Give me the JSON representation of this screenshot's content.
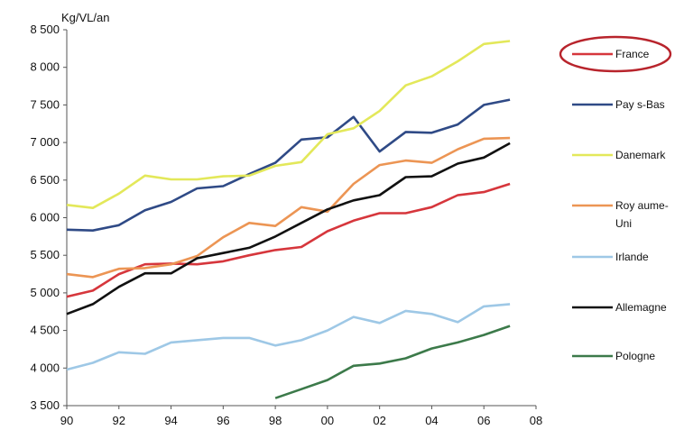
{
  "chart_data": {
    "type": "line",
    "title": "",
    "ylabel": "Kg/VL/an",
    "xlabel": "",
    "xlim": [
      1990,
      2008
    ],
    "ylim": [
      3500,
      8500
    ],
    "x_ticks": [
      {
        "value": 1990,
        "label": "90"
      },
      {
        "value": 1992,
        "label": "92"
      },
      {
        "value": 1994,
        "label": "94"
      },
      {
        "value": 1996,
        "label": "96"
      },
      {
        "value": 1998,
        "label": "98"
      },
      {
        "value": 2000,
        "label": "00"
      },
      {
        "value": 2002,
        "label": "02"
      },
      {
        "value": 2004,
        "label": "04"
      },
      {
        "value": 2006,
        "label": "06"
      },
      {
        "value": 2008,
        "label": "08"
      }
    ],
    "y_ticks": [
      {
        "value": 3500,
        "label": "3 500"
      },
      {
        "value": 4000,
        "label": "4 000"
      },
      {
        "value": 4500,
        "label": "4 500"
      },
      {
        "value": 5000,
        "label": "5 000"
      },
      {
        "value": 5500,
        "label": "5 500"
      },
      {
        "value": 6000,
        "label": "6 000"
      },
      {
        "value": 6500,
        "label": "6 500"
      },
      {
        "value": 7000,
        "label": "7 000"
      },
      {
        "value": 7500,
        "label": "7 500"
      },
      {
        "value": 8000,
        "label": "8 000"
      },
      {
        "value": 8500,
        "label": "8 500"
      }
    ],
    "grid": false,
    "legend_position": "right",
    "highlighted_series": "France",
    "highlight_color": "#b8242c",
    "series": [
      {
        "name": "France",
        "legend_lines": [
          "France"
        ],
        "color": "#d6363c",
        "points": [
          [
            1990,
            4950
          ],
          [
            1991,
            5030
          ],
          [
            1992,
            5250
          ],
          [
            1993,
            5380
          ],
          [
            1994,
            5390
          ],
          [
            1995,
            5380
          ],
          [
            1996,
            5420
          ],
          [
            1997,
            5500
          ],
          [
            1998,
            5570
          ],
          [
            1999,
            5610
          ],
          [
            2000,
            5820
          ],
          [
            2001,
            5960
          ],
          [
            2002,
            6060
          ],
          [
            2003,
            6060
          ],
          [
            2004,
            6140
          ],
          [
            2005,
            6300
          ],
          [
            2006,
            6340
          ],
          [
            2007,
            6450
          ]
        ]
      },
      {
        "name": "Pays-Bas",
        "legend_lines": [
          "Pay s-Bas"
        ],
        "color": "#2f4a86",
        "points": [
          [
            1990,
            5840
          ],
          [
            1991,
            5830
          ],
          [
            1992,
            5900
          ],
          [
            1993,
            6100
          ],
          [
            1994,
            6210
          ],
          [
            1995,
            6390
          ],
          [
            1996,
            6420
          ],
          [
            1997,
            6580
          ],
          [
            1998,
            6730
          ],
          [
            1999,
            7040
          ],
          [
            2000,
            7070
          ],
          [
            2001,
            7340
          ],
          [
            2002,
            6880
          ],
          [
            2003,
            7140
          ],
          [
            2004,
            7130
          ],
          [
            2005,
            7240
          ],
          [
            2006,
            7500
          ],
          [
            2007,
            7570
          ]
        ]
      },
      {
        "name": "Danemark",
        "legend_lines": [
          "Danemark"
        ],
        "color": "#e3e85a",
        "points": [
          [
            1990,
            6170
          ],
          [
            1991,
            6130
          ],
          [
            1992,
            6320
          ],
          [
            1993,
            6560
          ],
          [
            1994,
            6510
          ],
          [
            1995,
            6510
          ],
          [
            1996,
            6550
          ],
          [
            1997,
            6560
          ],
          [
            1998,
            6690
          ],
          [
            1999,
            6740
          ],
          [
            2000,
            7110
          ],
          [
            2001,
            7190
          ],
          [
            2002,
            7420
          ],
          [
            2003,
            7760
          ],
          [
            2004,
            7880
          ],
          [
            2005,
            8080
          ],
          [
            2006,
            8310
          ],
          [
            2007,
            8350
          ]
        ]
      },
      {
        "name": "Royaume-Uni",
        "legend_lines": [
          "Roy aume-",
          "Uni"
        ],
        "color": "#ec9554",
        "points": [
          [
            1990,
            5250
          ],
          [
            1991,
            5210
          ],
          [
            1992,
            5320
          ],
          [
            1993,
            5330
          ],
          [
            1994,
            5380
          ],
          [
            1995,
            5490
          ],
          [
            1996,
            5740
          ],
          [
            1997,
            5930
          ],
          [
            1998,
            5890
          ],
          [
            1999,
            6140
          ],
          [
            2000,
            6080
          ],
          [
            2001,
            6450
          ],
          [
            2002,
            6700
          ],
          [
            2003,
            6760
          ],
          [
            2004,
            6730
          ],
          [
            2005,
            6910
          ],
          [
            2006,
            7050
          ],
          [
            2007,
            7060
          ]
        ]
      },
      {
        "name": "Irlande",
        "legend_lines": [
          "Irlande"
        ],
        "color": "#9ec8e6",
        "points": [
          [
            1990,
            3980
          ],
          [
            1991,
            4070
          ],
          [
            1992,
            4210
          ],
          [
            1993,
            4190
          ],
          [
            1994,
            4340
          ],
          [
            1995,
            4370
          ],
          [
            1996,
            4400
          ],
          [
            1997,
            4400
          ],
          [
            1998,
            4300
          ],
          [
            1999,
            4370
          ],
          [
            2000,
            4500
          ],
          [
            2001,
            4680
          ],
          [
            2002,
            4600
          ],
          [
            2003,
            4760
          ],
          [
            2004,
            4720
          ],
          [
            2005,
            4610
          ],
          [
            2006,
            4820
          ],
          [
            2007,
            4850
          ]
        ]
      },
      {
        "name": "Allemagne",
        "legend_lines": [
          "Allemagne"
        ],
        "color": "#111111",
        "points": [
          [
            1990,
            4720
          ],
          [
            1991,
            4850
          ],
          [
            1992,
            5080
          ],
          [
            1993,
            5260
          ],
          [
            1994,
            5260
          ],
          [
            1995,
            5460
          ],
          [
            1996,
            5530
          ],
          [
            1997,
            5600
          ],
          [
            1998,
            5750
          ],
          [
            1999,
            5930
          ],
          [
            2000,
            6110
          ],
          [
            2001,
            6230
          ],
          [
            2002,
            6300
          ],
          [
            2003,
            6540
          ],
          [
            2004,
            6550
          ],
          [
            2005,
            6720
          ],
          [
            2006,
            6800
          ],
          [
            2007,
            6990
          ]
        ]
      },
      {
        "name": "Pologne",
        "legend_lines": [
          "Pologne"
        ],
        "color": "#3c7a4a",
        "points": [
          [
            1998,
            3600
          ],
          [
            1999,
            3720
          ],
          [
            2000,
            3840
          ],
          [
            2001,
            4030
          ],
          [
            2002,
            4060
          ],
          [
            2003,
            4130
          ],
          [
            2004,
            4260
          ],
          [
            2005,
            4340
          ],
          [
            2006,
            4440
          ],
          [
            2007,
            4560
          ]
        ]
      }
    ]
  }
}
